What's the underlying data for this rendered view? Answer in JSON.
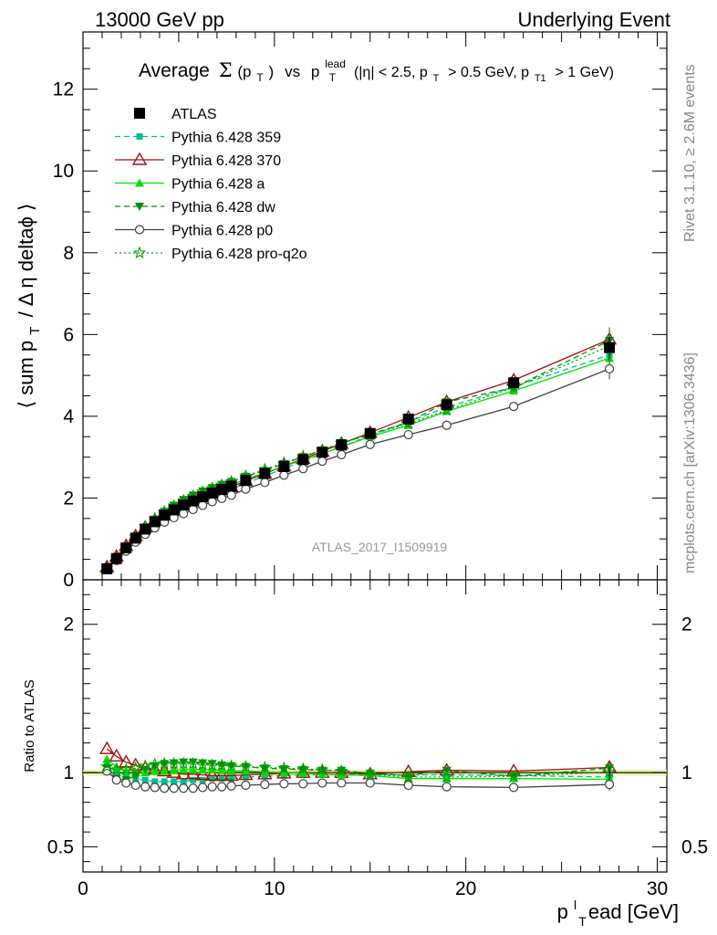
{
  "header": {
    "left": "13000 GeV pp",
    "right": "Underlying Event"
  },
  "side_labels": {
    "rivet": "Rivet 3.1.10, ≥ 2.6M events",
    "mcplots": "mcplots.cern.ch [arXiv:1306.3436]"
  },
  "chart_data": {
    "type": "scatter",
    "title": {
      "average": "Average",
      "sigma": "Σ",
      "pt_paren": "(p",
      "pt_sub": "T",
      "close": ")",
      "vs": "vs",
      "p": "p",
      "lead_sup": "lead",
      "lead_sub": "T",
      "cuts_eta": "(|η| < 2.5, p",
      "cuts_t": "T",
      "cuts_mid": "> 0.5 GeV, p",
      "cuts_t1": "T1",
      "cuts_end": "> 1 GeV)"
    },
    "ylabel": {
      "part1": "⟨ sum p",
      "sub": "T",
      "part2": "/ Δ η deltaϕ ⟩"
    },
    "ratio_ylabel": "Ratio to ATLAS",
    "xlabel": {
      "p": "p",
      "sup": "l",
      "sub": "T",
      "rest": "ead [GeV]"
    },
    "reference_label": "ATLAS_2017_I1509919",
    "xlim": [
      0,
      30.5
    ],
    "ylim": [
      0,
      13.4
    ],
    "ratio_ylim": [
      0.33,
      2.3
    ],
    "x_ticks": [
      0,
      10,
      20,
      30
    ],
    "x_tick_labels": [
      "0",
      "10",
      "20",
      "30"
    ],
    "y_ticks": [
      0,
      2,
      4,
      6,
      8,
      10,
      12
    ],
    "y_tick_labels": [
      "0",
      "2",
      "4",
      "6",
      "8",
      "10",
      "12"
    ],
    "ratio_ticks": [
      0.5,
      1,
      2
    ],
    "ratio_tick_labels": [
      "0.5",
      "1",
      "2"
    ],
    "x": [
      1.25,
      1.75,
      2.25,
      2.75,
      3.25,
      3.75,
      4.25,
      4.75,
      5.25,
      5.75,
      6.25,
      6.75,
      7.25,
      7.75,
      8.5,
      9.5,
      10.5,
      11.5,
      12.5,
      13.5,
      15.0,
      17.0,
      19.0,
      22.5,
      27.5
    ],
    "series": [
      {
        "name": "ATLAS",
        "color": "#000000",
        "marker": "square",
        "line": "none",
        "values": [
          0.27,
          0.52,
          0.78,
          1.02,
          1.24,
          1.42,
          1.58,
          1.71,
          1.83,
          1.93,
          2.03,
          2.12,
          2.21,
          2.29,
          2.43,
          2.6,
          2.77,
          2.94,
          3.12,
          3.3,
          3.58,
          3.93,
          4.28,
          4.82,
          5.68
        ],
        "ratio": [
          1,
          1,
          1,
          1,
          1,
          1,
          1,
          1,
          1,
          1,
          1,
          1,
          1,
          1,
          1,
          1,
          1,
          1,
          1,
          1,
          1,
          1,
          1,
          1,
          1
        ]
      },
      {
        "name": "Pythia 6.428 359",
        "color": "#00c090",
        "marker": "smallsquare",
        "line": "dashed",
        "values": [
          0.28,
          0.52,
          0.76,
          0.98,
          1.18,
          1.34,
          1.48,
          1.61,
          1.73,
          1.83,
          1.93,
          2.03,
          2.12,
          2.21,
          2.36,
          2.54,
          2.72,
          2.9,
          3.08,
          3.26,
          3.52,
          3.87,
          4.22,
          4.72,
          5.5
        ],
        "ratio": [
          1.05,
          1.0,
          0.98,
          0.96,
          0.95,
          0.94,
          0.94,
          0.94,
          0.94,
          0.95,
          0.95,
          0.96,
          0.96,
          0.96,
          0.97,
          0.975,
          0.98,
          0.985,
          0.985,
          0.99,
          0.985,
          0.985,
          0.985,
          0.98,
          0.97
        ]
      },
      {
        "name": "Pythia 6.428 370",
        "color": "#a01010",
        "marker": "triangle-open",
        "line": "solid",
        "values": [
          0.31,
          0.57,
          0.83,
          1.07,
          1.28,
          1.45,
          1.6,
          1.72,
          1.83,
          1.93,
          2.02,
          2.11,
          2.19,
          2.27,
          2.42,
          2.6,
          2.78,
          2.96,
          3.14,
          3.33,
          3.6,
          3.97,
          4.35,
          4.88,
          5.88
        ],
        "ratio": [
          1.16,
          1.11,
          1.07,
          1.05,
          1.03,
          1.02,
          1.01,
          1.0,
          0.99,
          0.99,
          0.985,
          0.98,
          0.98,
          0.98,
          0.985,
          0.99,
          0.995,
          1.0,
          1.0,
          1.0,
          0.99,
          1.005,
          1.015,
          1.01,
          1.035
        ]
      },
      {
        "name": "Pythia 6.428 a",
        "color": "#00e000",
        "marker": "triangle",
        "line": "solid",
        "values": [
          0.3,
          0.54,
          0.79,
          1.02,
          1.25,
          1.44,
          1.6,
          1.74,
          1.87,
          1.97,
          2.07,
          2.16,
          2.24,
          2.32,
          2.46,
          2.62,
          2.78,
          2.93,
          3.09,
          3.25,
          3.5,
          3.78,
          4.12,
          4.62,
          5.42
        ],
        "ratio": [
          1.09,
          1.04,
          1.01,
          1.0,
          1.0,
          1.01,
          1.01,
          1.015,
          1.02,
          1.02,
          1.02,
          1.02,
          1.015,
          1.01,
          1.01,
          1.005,
          1.0,
          0.995,
          0.99,
          0.985,
          0.98,
          0.96,
          0.96,
          0.96,
          0.955
        ]
      },
      {
        "name": "Pythia 6.428 dw",
        "color": "#009000",
        "marker": "triangle-down",
        "line": "dashed",
        "values": [
          0.28,
          0.5,
          0.74,
          1.0,
          1.26,
          1.48,
          1.67,
          1.82,
          1.96,
          2.07,
          2.17,
          2.25,
          2.33,
          2.4,
          2.53,
          2.67,
          2.84,
          3.01,
          3.17,
          3.35,
          3.56,
          3.85,
          4.35,
          4.7,
          5.85
        ],
        "ratio": [
          1.03,
          0.96,
          0.95,
          0.98,
          1.02,
          1.045,
          1.06,
          1.065,
          1.07,
          1.07,
          1.065,
          1.06,
          1.05,
          1.045,
          1.04,
          1.03,
          1.025,
          1.02,
          1.015,
          1.015,
          0.995,
          0.98,
          1.015,
          0.975,
          1.03
        ]
      },
      {
        "name": "Pythia 6.428 p0",
        "color": "#404040",
        "marker": "circle-open",
        "line": "solid",
        "values": [
          0.27,
          0.47,
          0.7,
          0.92,
          1.11,
          1.27,
          1.41,
          1.52,
          1.62,
          1.72,
          1.82,
          1.91,
          1.99,
          2.07,
          2.22,
          2.38,
          2.56,
          2.72,
          2.9,
          3.06,
          3.31,
          3.55,
          3.78,
          4.24,
          5.16
        ],
        "ratio": [
          1.01,
          0.95,
          0.93,
          0.915,
          0.905,
          0.9,
          0.895,
          0.895,
          0.895,
          0.895,
          0.9,
          0.905,
          0.905,
          0.91,
          0.915,
          0.92,
          0.925,
          0.925,
          0.93,
          0.93,
          0.93,
          0.915,
          0.905,
          0.9,
          0.92
        ]
      },
      {
        "name": "Pythia 6.428 pro-q2o",
        "color": "#00a000",
        "marker": "star",
        "line": "dotted",
        "values": [
          0.28,
          0.53,
          0.79,
          1.05,
          1.3,
          1.5,
          1.67,
          1.81,
          1.94,
          2.05,
          2.15,
          2.24,
          2.32,
          2.4,
          2.54,
          2.7,
          2.86,
          3.02,
          3.18,
          3.34,
          3.55,
          3.82,
          4.15,
          4.7,
          5.72
        ],
        "ratio": [
          1.04,
          1.02,
          1.02,
          1.03,
          1.045,
          1.055,
          1.06,
          1.06,
          1.06,
          1.06,
          1.055,
          1.05,
          1.05,
          1.045,
          1.04,
          1.035,
          1.03,
          1.025,
          1.02,
          1.01,
          0.99,
          0.97,
          0.97,
          0.975,
          1.005
        ]
      }
    ],
    "legend_position": "top-left",
    "grid": false
  }
}
